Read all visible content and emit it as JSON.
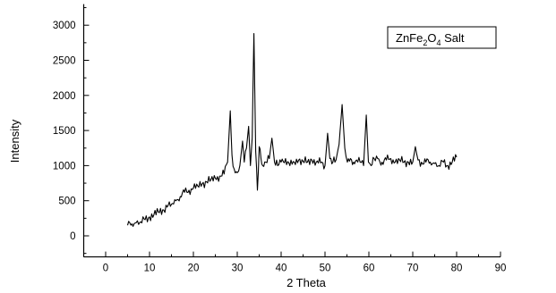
{
  "chart_data": {
    "type": "line",
    "title": "",
    "xlabel": "2 Theta",
    "ylabel": "Intensity",
    "xlim": [
      -5,
      90
    ],
    "ylim": [
      -300,
      3300
    ],
    "x_ticks": [
      0,
      10,
      20,
      30,
      40,
      50,
      60,
      70,
      80,
      90
    ],
    "y_ticks": [
      0,
      500,
      1000,
      1500,
      2000,
      2500,
      3000
    ],
    "grid": false,
    "legend": {
      "placement": "top-right",
      "text_main": "ZnFe",
      "sub1": "2",
      "text_mid": "O",
      "sub2": "4",
      "text_end": " Salt"
    },
    "line_color": "#000000",
    "series": [
      {
        "x": [
          5,
          6,
          7,
          8,
          9,
          10,
          11,
          12,
          13,
          14,
          15,
          16,
          17,
          18,
          19,
          20,
          21,
          22,
          23,
          24,
          25,
          26,
          27,
          27.8,
          28.4,
          28.8,
          29.3,
          30,
          30.6,
          31.2,
          31.6,
          32.1,
          32.6,
          33.0,
          33.4,
          33.8,
          34.2,
          34.6,
          35.0,
          35.4,
          35.8,
          36.5,
          37.3,
          37.9,
          38.5,
          39.2,
          40,
          41,
          42,
          43,
          44,
          45,
          46,
          47,
          48,
          49,
          50,
          50.6,
          51.1,
          51.8,
          52.5,
          53.2,
          53.9,
          54.5,
          55.1,
          55.8,
          56.5,
          57.2,
          58,
          58.8,
          59.4,
          59.9,
          60.5,
          61.2,
          62,
          63,
          64,
          65,
          66,
          67,
          68,
          69,
          70,
          70.6,
          71.2,
          72,
          73,
          74,
          75,
          76,
          77,
          78,
          79,
          80
        ],
        "y": [
          150,
          170,
          190,
          200,
          230,
          270,
          300,
          340,
          370,
          410,
          450,
          500,
          560,
          620,
          650,
          680,
          710,
          740,
          770,
          800,
          820,
          850,
          880,
          1050,
          1780,
          1150,
          950,
          900,
          1000,
          1350,
          1050,
          1250,
          1560,
          1000,
          1400,
          2880,
          1200,
          650,
          1270,
          1100,
          1000,
          1050,
          1100,
          1390,
          1050,
          1000,
          1050,
          1100,
          1000,
          1050,
          1080,
          1060,
          1050,
          1080,
          1050,
          1040,
          1000,
          1460,
          1100,
          1050,
          1080,
          1300,
          1870,
          1250,
          1050,
          1100,
          1050,
          1080,
          1050,
          1000,
          1720,
          1050,
          1000,
          1100,
          1100,
          1050,
          1080,
          1100,
          1050,
          1080,
          1050,
          1050,
          1050,
          1270,
          1080,
          1050,
          1050,
          1050,
          1030,
          1000,
          1050,
          1000,
          1050,
          1120
        ]
      }
    ]
  }
}
